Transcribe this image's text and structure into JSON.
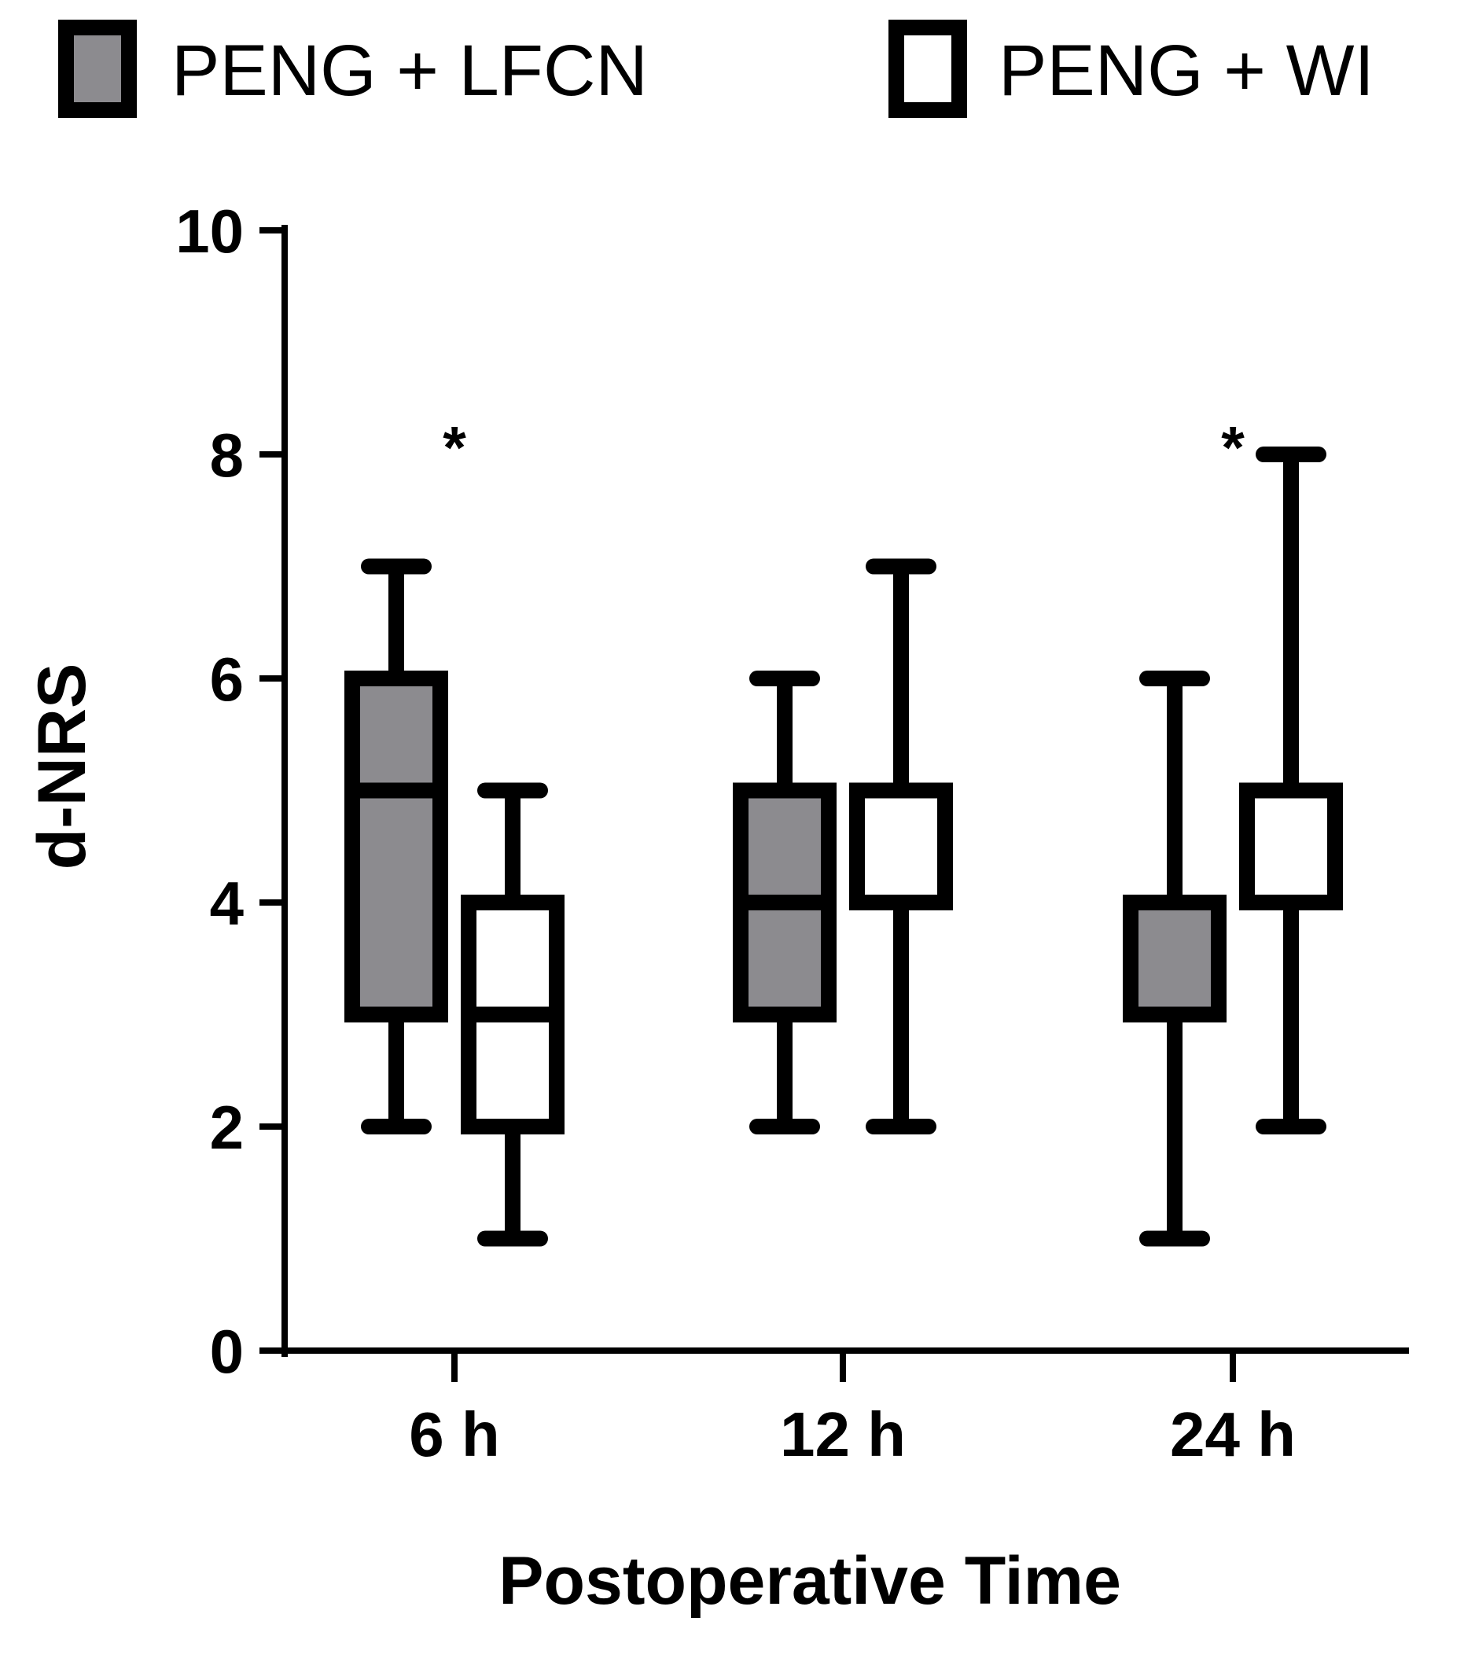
{
  "chart_data": {
    "type": "box",
    "xlabel": "Postoperative Time",
    "ylabel": "d-NRS",
    "ylim": [
      0,
      10
    ],
    "yticks": [
      0,
      2,
      4,
      6,
      8,
      10
    ],
    "categories": [
      "6 h",
      "12 h",
      "24 h"
    ],
    "series": [
      {
        "name": "PENG + LFCN",
        "color": "#8c8b8f",
        "boxes": [
          {
            "min": 2,
            "q1": 3,
            "median": 5,
            "q3": 6,
            "max": 7
          },
          {
            "min": 2,
            "q1": 3,
            "median": 4,
            "q3": 5,
            "max": 6
          },
          {
            "min": 1,
            "q1": 3,
            "median": 4,
            "q3": 4,
            "max": 6
          }
        ]
      },
      {
        "name": "PENG + WI",
        "color": "#ffffff",
        "boxes": [
          {
            "min": 1,
            "q1": 2,
            "median": 3,
            "q3": 4,
            "max": 5
          },
          {
            "min": 2,
            "q1": 4,
            "median": 4,
            "q3": 5,
            "max": 7
          },
          {
            "min": 2,
            "q1": 4,
            "median": 5,
            "q3": 5,
            "max": 8
          }
        ]
      }
    ],
    "annotations": [
      {
        "category": "6 h",
        "text": "*",
        "y": 8.3
      },
      {
        "category": "24 h",
        "text": "*",
        "y": 8.3
      }
    ],
    "legend": "top"
  }
}
